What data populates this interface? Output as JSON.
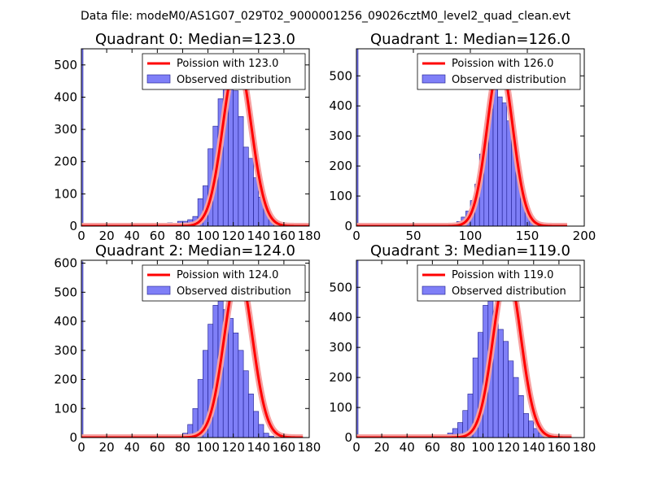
{
  "figure": {
    "suptitle": "Data file: modeM0/AS1G07_029T02_9000001256_09026cztM0_level2_quad_clean.evt"
  },
  "colors": {
    "bar_fill": "#7f7ff7",
    "bar_edge": "#1a1a8c",
    "fit_line": "#ff0000",
    "fit_line_faded": "#f7a0a0",
    "axis": "#000000"
  },
  "chart_data": [
    {
      "type": "bar",
      "title": "Quadrant 0: Median=123.0",
      "xlim": [
        0,
        180
      ],
      "ylim": [
        0,
        550
      ],
      "xticks": [
        0,
        20,
        40,
        60,
        80,
        100,
        120,
        140,
        160,
        180
      ],
      "yticks": [
        0,
        100,
        200,
        300,
        400,
        500
      ],
      "legend": {
        "line": "Poission with 123.0",
        "bar": "Observed distribution",
        "position": "top-right"
      },
      "edge_bar": {
        "x": [
          0,
          1
        ],
        "value": 550
      },
      "bin_edges_start": 60,
      "bin_width": 4,
      "counts": [
        5,
        8,
        10,
        8,
        15,
        15,
        20,
        30,
        85,
        125,
        240,
        310,
        395,
        440,
        440,
        420,
        340,
        245,
        210,
        150,
        90,
        60,
        30,
        15,
        5
      ],
      "poisson_mean": 123.0,
      "poisson_peak": 520,
      "poisson_x": [
        0,
        180
      ]
    },
    {
      "type": "bar",
      "title": "Quadrant 1: Median=126.0",
      "xlim": [
        0,
        200
      ],
      "ylim": [
        0,
        590
      ],
      "xticks": [
        0,
        50,
        100,
        150,
        200
      ],
      "yticks": [
        0,
        100,
        200,
        300,
        400,
        500
      ],
      "legend": {
        "line": "Poission with 126.0",
        "bar": "Observed distribution",
        "position": "top-right"
      },
      "edge_bar": {
        "x": [
          0,
          1.2
        ],
        "value": 590
      },
      "bin_edges_start": 76,
      "bin_width": 4,
      "counts": [
        3,
        5,
        8,
        15,
        30,
        50,
        85,
        140,
        240,
        320,
        390,
        470,
        430,
        410,
        350,
        290,
        180,
        90,
        60,
        30,
        12,
        5
      ],
      "poisson_mean": 126.0,
      "poisson_peak": 545,
      "poisson_x": [
        0,
        185
      ]
    },
    {
      "type": "bar",
      "title": "Quadrant 2: Median=124.0",
      "xlim": [
        0,
        180
      ],
      "ylim": [
        0,
        610
      ],
      "xticks": [
        0,
        20,
        40,
        60,
        80,
        100,
        120,
        140,
        160,
        180
      ],
      "yticks": [
        0,
        100,
        200,
        300,
        400,
        500,
        600
      ],
      "legend": {
        "line": "Poission with 124.0",
        "bar": "Observed distribution",
        "position": "top-right"
      },
      "edge_bar": {
        "x": [
          0,
          1
        ],
        "value": 605
      },
      "bin_edges_start": 68,
      "bin_width": 4,
      "counts": [
        10,
        8,
        10,
        15,
        45,
        100,
        200,
        300,
        390,
        455,
        470,
        440,
        410,
        360,
        300,
        230,
        150,
        90,
        45,
        15,
        5
      ],
      "poisson_mean": 124.0,
      "poisson_peak": 570,
      "poisson_x": [
        0,
        175
      ]
    },
    {
      "type": "bar",
      "title": "Quadrant 3: Median=119.0",
      "xlim": [
        0,
        180
      ],
      "ylim": [
        0,
        590
      ],
      "xticks": [
        0,
        20,
        40,
        60,
        80,
        100,
        120,
        140,
        160,
        180
      ],
      "yticks": [
        0,
        100,
        200,
        300,
        400,
        500
      ],
      "legend": {
        "line": "Poission with 119.0",
        "bar": "Observed distribution",
        "position": "top-right"
      },
      "edge_bar": {
        "x": [
          0,
          1
        ],
        "value": 590
      },
      "bin_edges_start": 60,
      "bin_width": 4,
      "counts": [
        5,
        8,
        10,
        15,
        30,
        50,
        90,
        145,
        265,
        350,
        440,
        480,
        420,
        360,
        320,
        255,
        200,
        140,
        80,
        55,
        30,
        15,
        8
      ],
      "poisson_mean": 119.0,
      "poisson_peak": 555,
      "poisson_x": [
        0,
        170
      ]
    }
  ]
}
